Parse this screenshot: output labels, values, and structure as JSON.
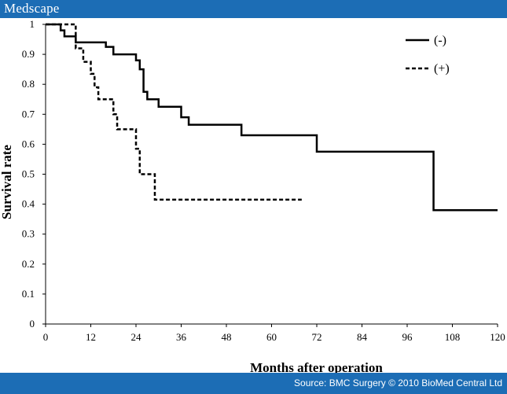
{
  "header": {
    "brand": "Medscape"
  },
  "footer": {
    "source": "Source: BMC Surgery © 2010 BioMed Central Ltd"
  },
  "colors": {
    "bar": "#1c6db5",
    "line": "#000000"
  },
  "chart_data": {
    "type": "line",
    "title": "",
    "xlabel": "Months after operation",
    "ylabel": "Survival rate",
    "xlim": [
      0,
      120
    ],
    "ylim": [
      0,
      1
    ],
    "xticks": [
      0,
      12,
      24,
      36,
      48,
      60,
      72,
      84,
      96,
      108,
      120
    ],
    "yticks": [
      0,
      0.1,
      0.2,
      0.3,
      0.4,
      0.5,
      0.6,
      0.7,
      0.8,
      0.9,
      1
    ],
    "legend": "top-right",
    "grid": false,
    "series": [
      {
        "name": "(-)",
        "style": "solid",
        "step": true,
        "x": [
          0,
          4,
          5,
          8,
          16,
          18,
          24,
          25,
          26,
          27,
          30,
          36,
          38,
          52,
          72,
          103,
          120
        ],
        "y": [
          1,
          0.98,
          0.96,
          0.94,
          0.925,
          0.9,
          0.88,
          0.85,
          0.775,
          0.75,
          0.725,
          0.69,
          0.665,
          0.63,
          0.575,
          0.38,
          0.38
        ]
      },
      {
        "name": "(+)",
        "style": "dashed",
        "step": true,
        "x": [
          0,
          8,
          10,
          12,
          13,
          14,
          18,
          19,
          24,
          25,
          26,
          29,
          68
        ],
        "y": [
          1,
          0.92,
          0.875,
          0.835,
          0.79,
          0.75,
          0.7,
          0.65,
          0.585,
          0.5,
          0.5,
          0.415,
          0.415
        ]
      }
    ]
  }
}
